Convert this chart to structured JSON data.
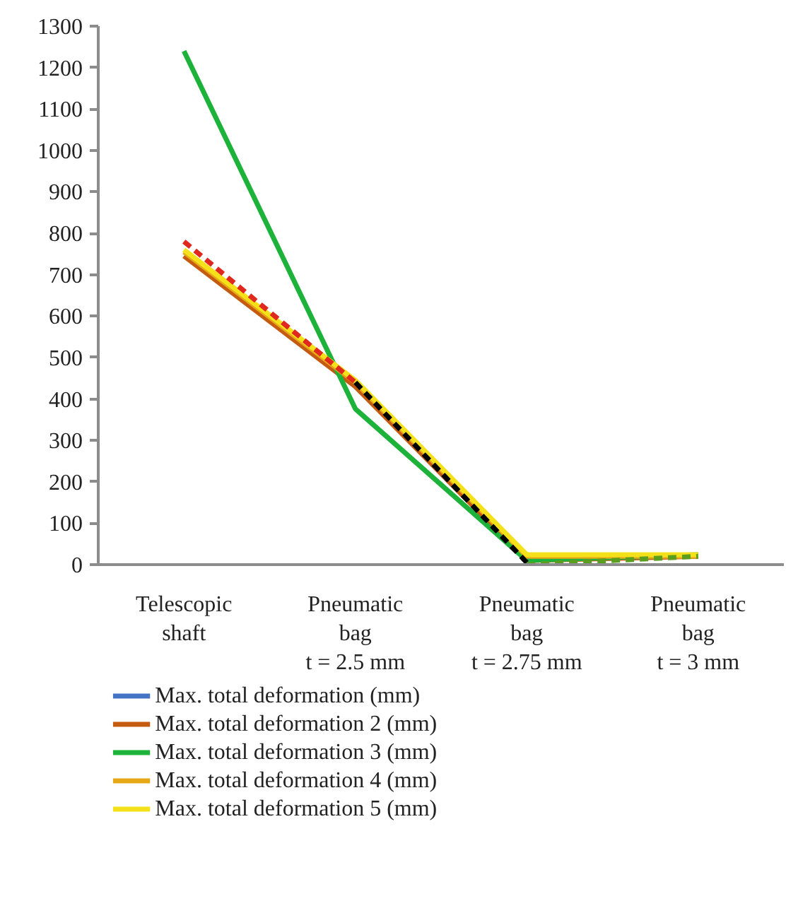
{
  "chart_data": {
    "type": "line",
    "categories": [
      "Telescopic\nshaft",
      "Pneumatic\nbag\nt = 2.5 mm",
      "Pneumatic\nbag\nt = 2.75 mm",
      "Pneumatic\nbag\nt = 3 mm"
    ],
    "ylim": [
      0,
      1300
    ],
    "yticks": [
      0,
      100,
      200,
      300,
      400,
      500,
      600,
      700,
      800,
      900,
      1000,
      1100,
      1200,
      1300
    ],
    "grid": false,
    "legend": "bottom",
    "line_style": "solid",
    "marker": "none",
    "series": [
      {
        "name": "Max. total deformation (mm)",
        "color": "#4472c4",
        "values": [
          null,
          null,
          null,
          null
        ]
      },
      {
        "name": "Max. total deformation 2 (mm)",
        "color": "#c55a11",
        "values": [
          745,
          430,
          10,
          20
        ]
      },
      {
        "name": "Max. total deformation 3 (mm)",
        "color": "#1db33a",
        "values": [
          1240,
          376,
          10,
          24
        ]
      },
      {
        "name": "Max. total deformation 4 (mm)",
        "color": "#e6a817",
        "values": [
          755,
          440,
          20,
          20
        ]
      },
      {
        "name": "Max. total deformation 5 (mm)",
        "color": "#f5e11a",
        "values": [
          760,
          445,
          24,
          24
        ]
      },
      {
        "color": "#e0281e",
        "line_style": "dashed",
        "values": [
          780,
          440,
          null,
          null
        ]
      },
      {
        "color": "#000000",
        "line_style": "dashed",
        "values": [
          null,
          440,
          5,
          null
        ]
      },
      {
        "color": "#5a9e1e",
        "line_style": "dashed",
        "values": [
          null,
          null,
          0,
          20
        ]
      }
    ]
  }
}
